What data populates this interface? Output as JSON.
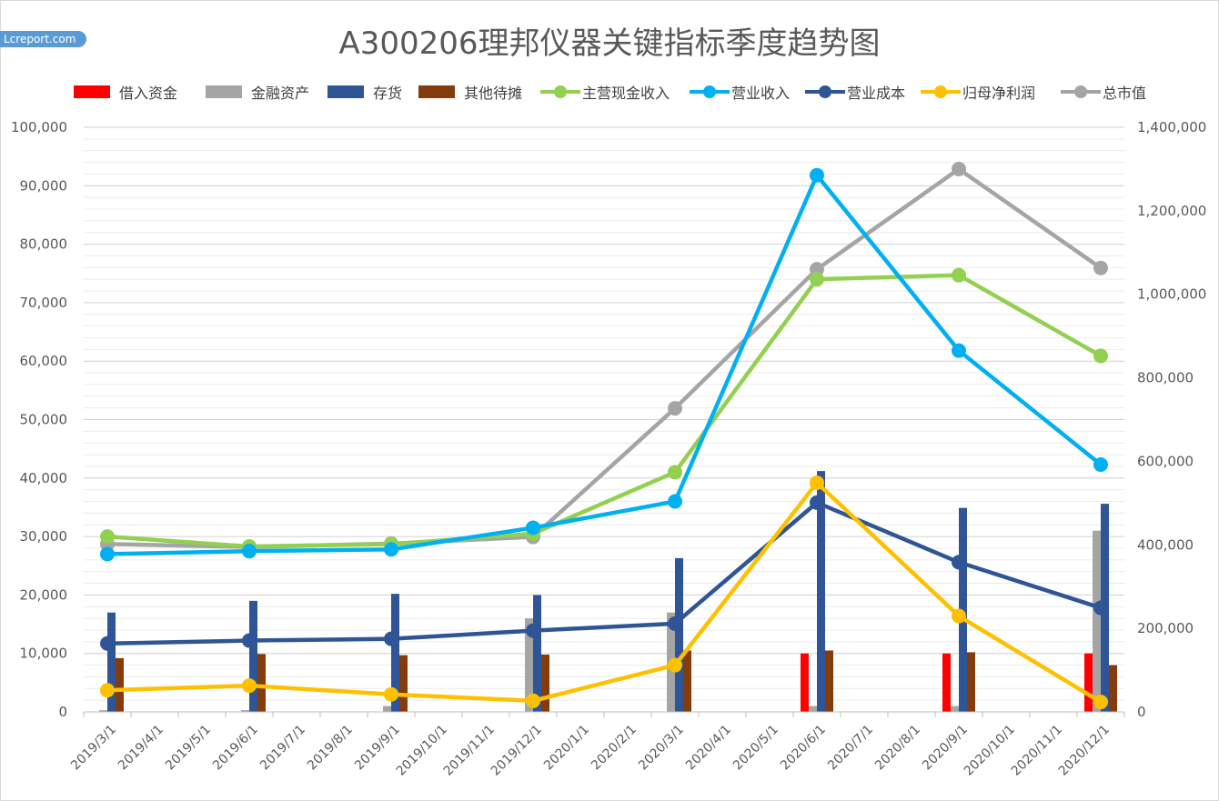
{
  "watermark": "Lcreport.com",
  "chart_data": {
    "type": "bar+line",
    "title": "A300206理邦仪器关键指标季度趋势图",
    "legend_position": "top",
    "grid": true,
    "x_axis": {
      "tick_labels": [
        "2019/3/1",
        "2019/4/1",
        "2019/5/1",
        "2019/6/1",
        "2019/7/1",
        "2019/8/1",
        "2019/9/1",
        "2019/10/1",
        "2019/11/1",
        "2019/12/1",
        "2020/1/1",
        "2020/2/1",
        "2020/3/1",
        "2020/4/1",
        "2020/5/1",
        "2020/6/1",
        "2020/7/1",
        "2020/8/1",
        "2020/9/1",
        "2020/10/1",
        "2020/11/1",
        "2020/12/1"
      ]
    },
    "y_left": {
      "range": [
        0,
        100000
      ],
      "step": 10000,
      "tick_labels": [
        "0",
        "10,000",
        "20,000",
        "30,000",
        "40,000",
        "50,000",
        "60,000",
        "70,000",
        "80,000",
        "90,000",
        "100,000"
      ]
    },
    "y_right": {
      "range": [
        0,
        1400000
      ],
      "step": 200000,
      "tick_labels": [
        "0",
        "200,000",
        "400,000",
        "600,000",
        "800,000",
        "1,000,000",
        "1,200,000",
        "1,400,000"
      ]
    },
    "x": [
      "2019/3/1",
      "2019/6/1",
      "2019/9/1",
      "2019/12/1",
      "2020/3/1",
      "2020/6/1",
      "2020/9/1",
      "2020/12/1"
    ],
    "bar_series": [
      {
        "name": "借入资金",
        "color": "#ff0000",
        "axis": "left",
        "values": [
          0,
          0,
          0,
          0,
          0,
          10000,
          10000,
          10000
        ]
      },
      {
        "name": "金融资产",
        "color": "#a5a5a5",
        "axis": "left",
        "values": [
          300,
          300,
          1000,
          16000,
          17000,
          1000,
          1000,
          31000
        ]
      },
      {
        "name": "存货",
        "color": "#2f5597",
        "axis": "left",
        "values": [
          17000,
          19000,
          20200,
          20000,
          26300,
          41200,
          34900,
          35600
        ]
      },
      {
        "name": "其他待摊",
        "color": "#843c0c",
        "axis": "left",
        "values": [
          9200,
          9900,
          9700,
          9800,
          10500,
          10500,
          10200,
          8000
        ]
      }
    ],
    "line_series": [
      {
        "name": "主营现金收入",
        "color": "#92d050",
        "axis": "left",
        "values": [
          30000,
          28300,
          28700,
          30500,
          41000,
          74000,
          74700,
          60900
        ]
      },
      {
        "name": "营业收入",
        "color": "#00b0f0",
        "axis": "left",
        "values": [
          27000,
          27500,
          27800,
          31500,
          36000,
          91800,
          61800,
          42300
        ]
      },
      {
        "name": "营业成本",
        "color": "#2f5597",
        "axis": "left",
        "values": [
          11700,
          12200,
          12500,
          13900,
          15100,
          35800,
          25600,
          17800
        ]
      },
      {
        "name": "归母净利润",
        "color": "#ffc000",
        "axis": "left",
        "values": [
          3700,
          4500,
          3000,
          1900,
          8000,
          39200,
          16400,
          1700
        ]
      },
      {
        "name": "总市值",
        "color": "#a5a5a5",
        "axis": "right",
        "values": [
          402000,
          395000,
          403000,
          419000,
          727000,
          1060000,
          1300000,
          1063000
        ]
      }
    ]
  }
}
